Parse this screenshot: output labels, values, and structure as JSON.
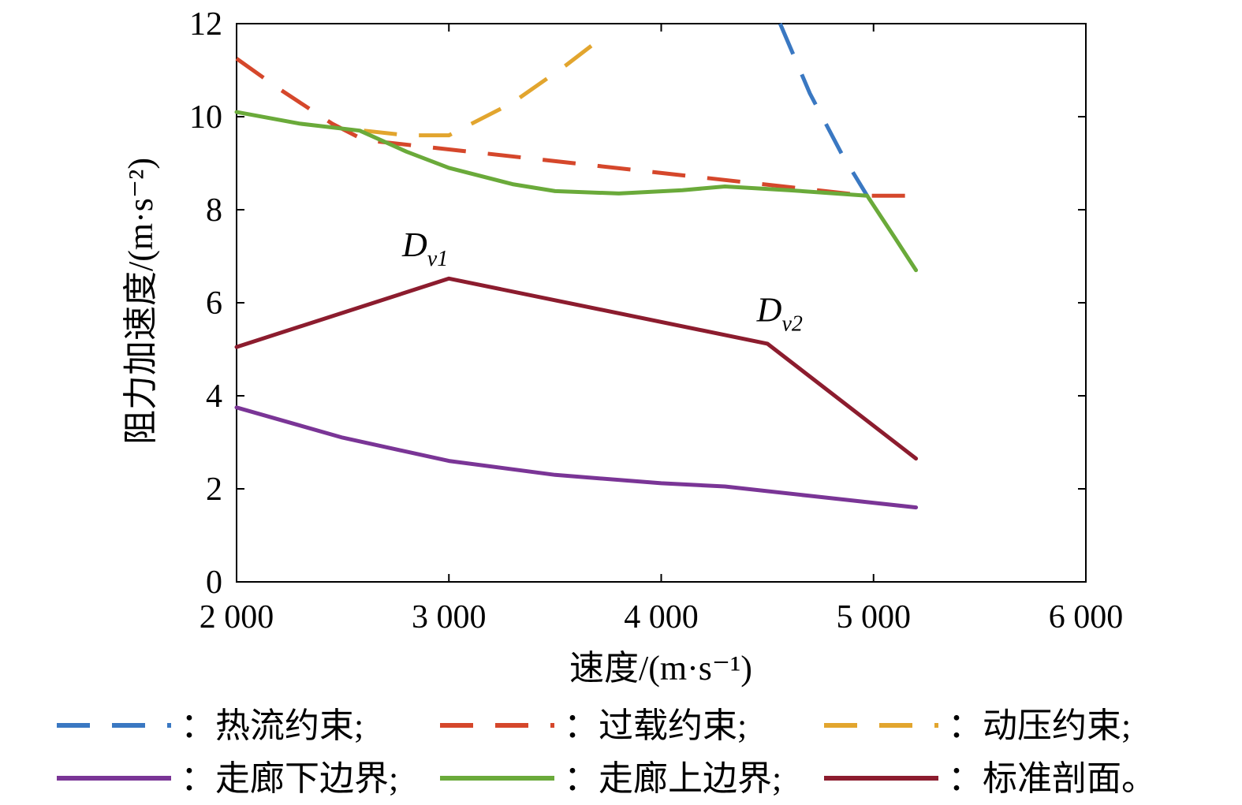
{
  "chart_data": {
    "type": "line",
    "xlabel": "速度/(m·s⁻¹)",
    "ylabel": "阻力加速度/(m·s⁻²)",
    "xlim": [
      2000,
      6000
    ],
    "ylim": [
      0,
      12
    ],
    "xticks": [
      2000,
      3000,
      4000,
      5000,
      6000
    ],
    "xtick_labels": [
      "2 000",
      "3 000",
      "4 000",
      "5 000",
      "6 000"
    ],
    "yticks": [
      0,
      2,
      4,
      6,
      8,
      10,
      12
    ],
    "ytick_labels": [
      "0",
      "2",
      "4",
      "6",
      "8",
      "10",
      "12"
    ],
    "grid": false,
    "series": [
      {
        "name": "热流约束",
        "legend_label": "：热流约束;",
        "color": "#3a78c2",
        "style": "dashed",
        "x": [
          4560,
          4700,
          4850,
          4970
        ],
        "y": [
          12.0,
          10.5,
          9.2,
          8.3
        ]
      },
      {
        "name": "过载约束",
        "legend_label": "：过载约束;",
        "color": "#d5472b",
        "style": "dashed",
        "x": [
          2000,
          2200,
          2450,
          2600,
          4970,
          5100,
          5200
        ],
        "y": [
          11.25,
          10.6,
          9.85,
          9.5,
          8.3,
          8.3,
          8.3
        ]
      },
      {
        "name": "动压约束",
        "legend_label": "：动压约束;",
        "color": "#e2a52e",
        "style": "dashed",
        "x": [
          2600,
          2800,
          3000,
          3300,
          3550,
          3750
        ],
        "y": [
          9.7,
          9.6,
          9.6,
          10.3,
          11.1,
          11.8
        ]
      },
      {
        "name": "走廊下边界",
        "legend_label": "：走廊下边界;",
        "color": "#7a3596",
        "style": "solid",
        "x": [
          2000,
          2500,
          3000,
          3500,
          4000,
          4300,
          4700,
          5200
        ],
        "y": [
          3.75,
          3.1,
          2.6,
          2.3,
          2.12,
          2.05,
          1.85,
          1.6
        ]
      },
      {
        "name": "走廊上边界",
        "legend_label": "：走廊上边界;",
        "color": "#6aaa3a",
        "style": "solid",
        "x": [
          2000,
          2300,
          2580,
          2800,
          3000,
          3300,
          3500,
          3800,
          4100,
          4300,
          4600,
          4970,
          5100,
          5200
        ],
        "y": [
          10.1,
          9.85,
          9.7,
          9.25,
          8.9,
          8.55,
          8.4,
          8.35,
          8.42,
          8.5,
          8.42,
          8.3,
          7.4,
          6.7
        ]
      },
      {
        "name": "标准剖面",
        "legend_label": "：标准剖面。",
        "color": "#8c1c2e",
        "style": "solid",
        "x": [
          2000,
          3000,
          4500,
          5200
        ],
        "y": [
          5.05,
          6.52,
          5.12,
          2.65
        ]
      }
    ],
    "annotations": [
      {
        "text": "D",
        "sub": "v1",
        "x": 2780,
        "y": 7.0
      },
      {
        "text": "D",
        "sub": "v2",
        "x": 4450,
        "y": 5.6
      }
    ]
  }
}
